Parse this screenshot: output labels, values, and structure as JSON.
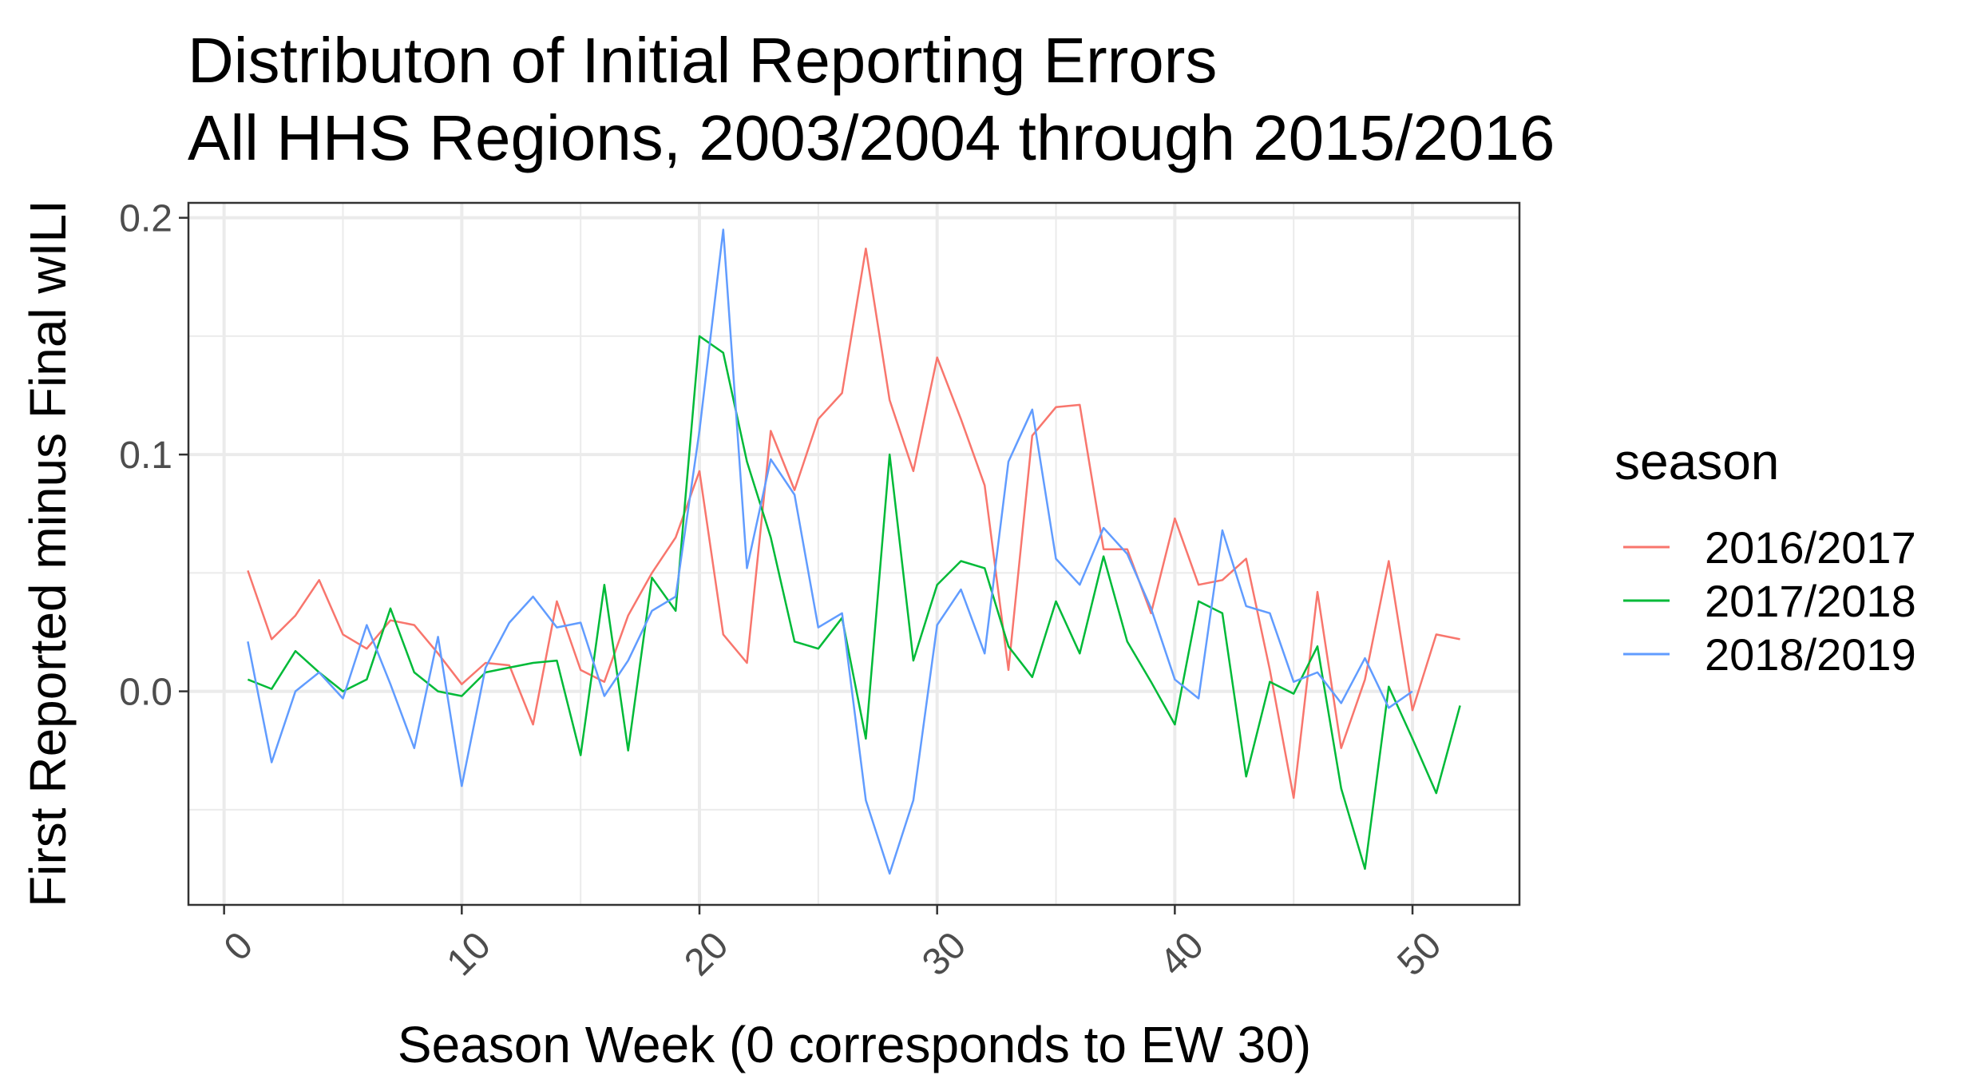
{
  "chart_data": {
    "type": "line",
    "title": [
      "Distributon of Initial Reporting Errors",
      "All HHS Regions, 2003/2004 through 2015/2016"
    ],
    "xlabel": "Season Week (0 corresponds to EW 30)",
    "ylabel": "First Reported minus Final wILI",
    "xlim": [
      -1.5,
      54.5
    ],
    "ylim": [
      -0.0902,
      0.2063
    ],
    "xticks": [
      0,
      10,
      20,
      30,
      40,
      50
    ],
    "xtick_labels": [
      "0",
      "10",
      "20",
      "30",
      "40",
      "50"
    ],
    "yticks": [
      0.0,
      0.1,
      0.2
    ],
    "ytick_labels": [
      "0.0",
      "0.1",
      "0.2"
    ],
    "grid": true,
    "legend": {
      "title": "season",
      "position": "right"
    },
    "series": [
      {
        "name": "2016/2017",
        "color": "#F8766D",
        "x": [
          1,
          2,
          3,
          4,
          5,
          6,
          7,
          8,
          9,
          10,
          11,
          12,
          13,
          14,
          15,
          16,
          17,
          18,
          19,
          20,
          21,
          22,
          23,
          24,
          25,
          26,
          27,
          28,
          29,
          30,
          31,
          32,
          33,
          34,
          35,
          36,
          37,
          38,
          39,
          40,
          41,
          42,
          43,
          44,
          45,
          46,
          47,
          48,
          49,
          50,
          51,
          52
        ],
        "y": [
          0.051,
          0.022,
          0.032,
          0.047,
          0.024,
          0.018,
          0.03,
          0.028,
          0.016,
          0.003,
          0.012,
          0.011,
          -0.014,
          0.038,
          0.009,
          0.004,
          0.032,
          0.05,
          0.065,
          0.093,
          0.024,
          0.012,
          0.11,
          0.085,
          0.115,
          0.126,
          0.187,
          0.123,
          0.093,
          0.141,
          0.115,
          0.087,
          0.009,
          0.108,
          0.12,
          0.121,
          0.06,
          0.06,
          0.033,
          0.073,
          0.045,
          0.047,
          0.056,
          0.009,
          -0.045,
          0.042,
          -0.024,
          0.005,
          0.055,
          -0.008,
          0.024,
          0.022
        ]
      },
      {
        "name": "2017/2018",
        "color": "#00BA38",
        "x": [
          1,
          2,
          3,
          4,
          5,
          6,
          7,
          8,
          9,
          10,
          11,
          12,
          13,
          14,
          15,
          16,
          17,
          18,
          19,
          20,
          21,
          22,
          23,
          24,
          25,
          26,
          27,
          28,
          29,
          30,
          31,
          32,
          33,
          34,
          35,
          36,
          37,
          38,
          39,
          40,
          41,
          42,
          43,
          44,
          45,
          46,
          47,
          48,
          49,
          50,
          51,
          52
        ],
        "y": [
          0.005,
          0.001,
          0.017,
          0.008,
          0.0,
          0.005,
          0.035,
          0.008,
          0.0,
          -0.002,
          0.008,
          0.01,
          0.012,
          0.013,
          -0.027,
          0.045,
          -0.025,
          0.048,
          0.034,
          0.15,
          0.143,
          0.097,
          0.065,
          0.021,
          0.018,
          0.031,
          -0.02,
          0.1,
          0.013,
          0.045,
          0.055,
          0.052,
          0.019,
          0.006,
          0.038,
          0.016,
          0.057,
          0.021,
          0.004,
          -0.014,
          0.038,
          0.033,
          -0.036,
          0.004,
          -0.001,
          0.019,
          -0.041,
          -0.075,
          0.002,
          -0.02,
          -0.043,
          -0.006
        ]
      },
      {
        "name": "2018/2019",
        "color": "#619CFF",
        "x": [
          1,
          2,
          3,
          4,
          5,
          6,
          7,
          8,
          9,
          10,
          11,
          12,
          13,
          14,
          15,
          16,
          17,
          18,
          19,
          20,
          21,
          22,
          23,
          24,
          25,
          26,
          27,
          28,
          29,
          30,
          31,
          32,
          33,
          34,
          35,
          36,
          37,
          38,
          39,
          40,
          41,
          42,
          43,
          44,
          45,
          46,
          47,
          48,
          49,
          50
        ],
        "y": [
          0.021,
          -0.03,
          0.0,
          0.008,
          -0.003,
          0.028,
          0.003,
          -0.024,
          0.023,
          -0.04,
          0.01,
          0.029,
          0.04,
          0.027,
          0.029,
          -0.002,
          0.013,
          0.034,
          0.04,
          0.11,
          0.195,
          0.052,
          0.098,
          0.083,
          0.027,
          0.033,
          -0.046,
          -0.077,
          -0.046,
          0.028,
          0.043,
          0.016,
          0.097,
          0.119,
          0.056,
          0.045,
          0.069,
          0.058,
          0.035,
          0.005,
          -0.003,
          0.068,
          0.036,
          0.033,
          0.004,
          0.008,
          -0.005,
          0.014,
          -0.007,
          0.0
        ]
      }
    ]
  }
}
